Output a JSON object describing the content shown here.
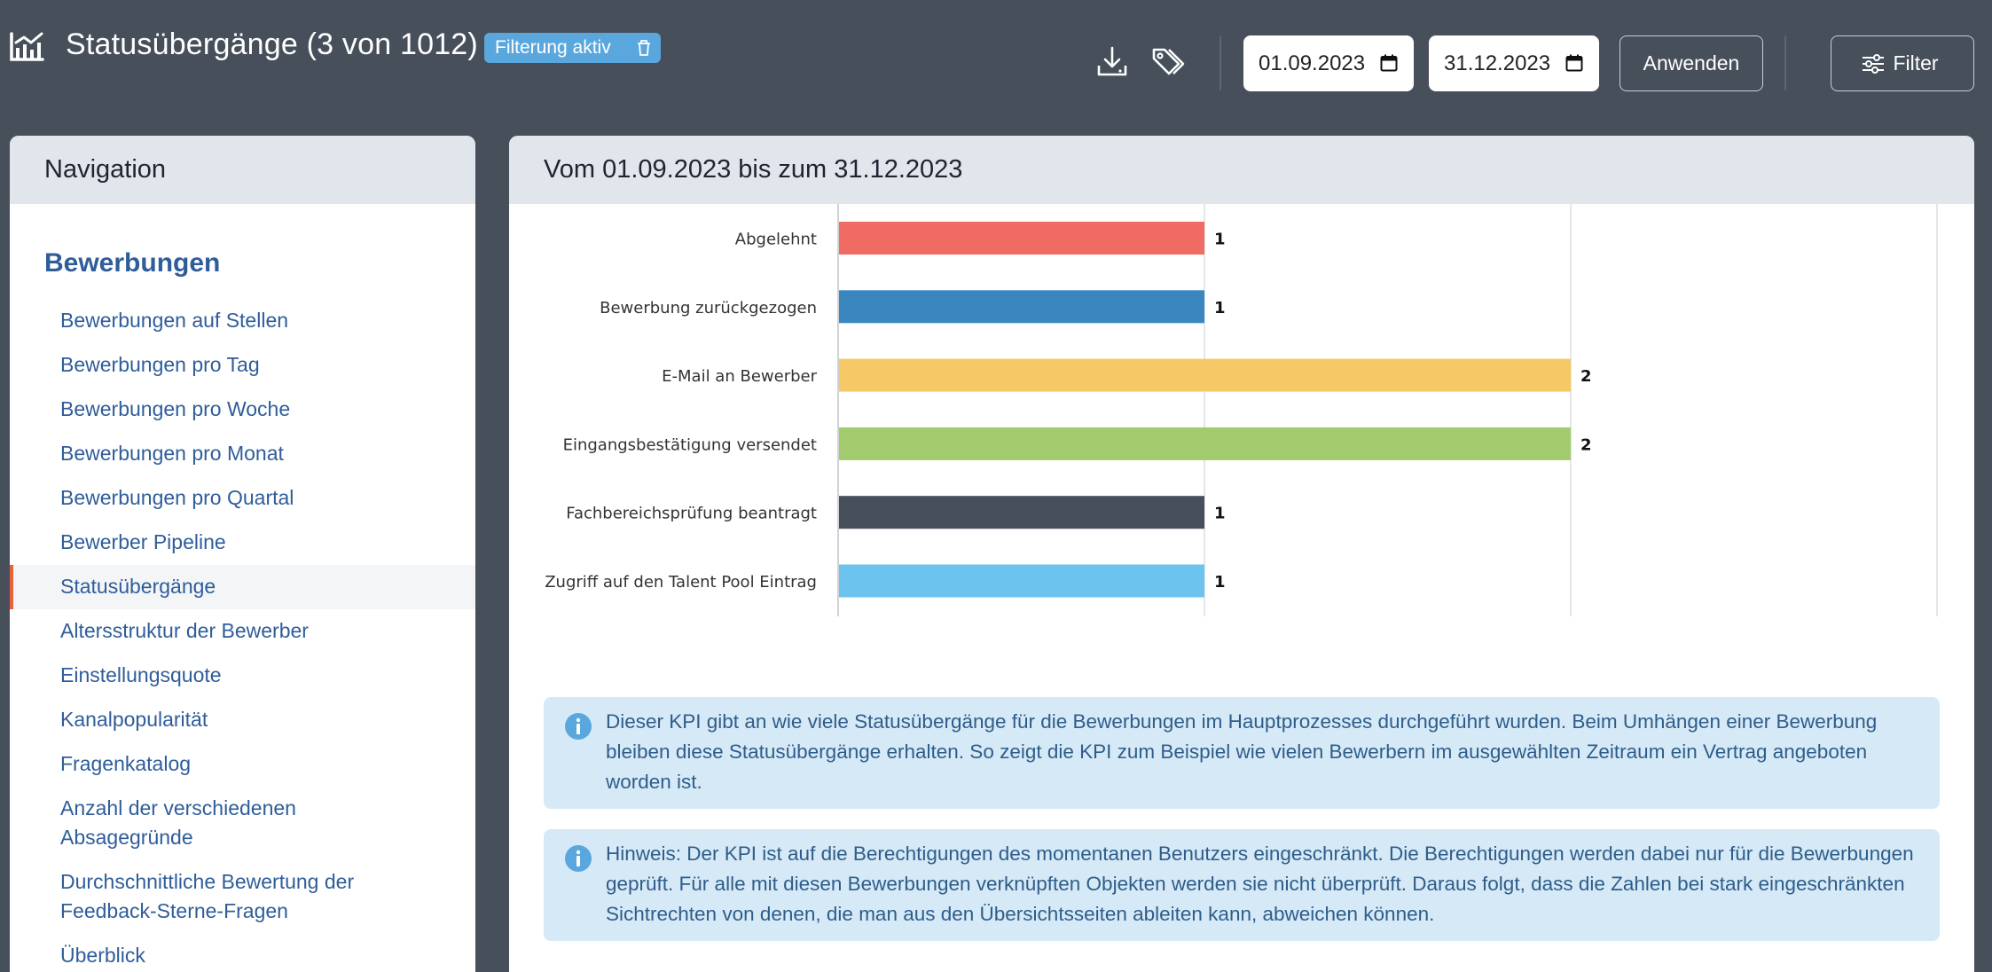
{
  "header": {
    "title": "Statusübergänge (3 von 1012)",
    "filter_badge": "Filterung aktiv",
    "date_from": "01.09.2023",
    "date_to": "31.12.2023",
    "apply_label": "Anwenden",
    "filter_label": "Filter"
  },
  "sidebar": {
    "heading": "Navigation",
    "section": "Bewerbungen",
    "items": [
      {
        "label": "Bewerbungen auf Stellen",
        "active": false
      },
      {
        "label": "Bewerbungen pro Tag",
        "active": false
      },
      {
        "label": "Bewerbungen pro Woche",
        "active": false
      },
      {
        "label": "Bewerbungen pro Monat",
        "active": false
      },
      {
        "label": "Bewerbungen pro Quartal",
        "active": false
      },
      {
        "label": "Bewerber Pipeline",
        "active": false
      },
      {
        "label": "Statusübergänge",
        "active": true
      },
      {
        "label": "Altersstruktur der Bewerber",
        "active": false
      },
      {
        "label": "Einstellungsquote",
        "active": false
      },
      {
        "label": "Kanalpopularität",
        "active": false
      },
      {
        "label": "Fragenkatalog",
        "active": false
      },
      {
        "label": "Anzahl der verschiedenen Absagegründe",
        "active": false
      },
      {
        "label": "Durchschnittliche Bewertung der Feedback-Sterne-Fragen",
        "active": false
      },
      {
        "label": "Überblick",
        "active": false
      }
    ]
  },
  "main": {
    "heading": "Vom 01.09.2023 bis zum 31.12.2023",
    "info_1": "Dieser KPI gibt an wie viele Statusübergänge für die Bewerbungen im Hauptprozesses durchgeführt wurden. Beim Umhängen einer Bewerbung bleiben diese Statusübergänge erhalten. So zeigt die KPI zum Beispiel wie vielen Bewerbern im ausgewählten Zeitraum ein Vertrag angeboten worden ist.",
    "info_2": "Hinweis: Der KPI ist auf die Berechtigungen des momentanen Benutzers eingeschränkt. Die Berechtigungen werden dabei nur für die Bewerbungen geprüft. Für alle mit diesen Bewerbungen verknüpften Objekten werden sie nicht überprüft. Daraus folgt, dass die Zahlen bei stark eingeschränkten Sichtrechten von denen, die man aus den Übersichtsseiten ableiten kann, abweichen können."
  },
  "colors": {
    "header_bg": "#474f5b",
    "accent": "#2f5d9a",
    "badge": "#5aa7dd",
    "active_marker": "#e8603c",
    "info_bg": "#d6e9f7"
  },
  "chart_data": {
    "type": "bar",
    "orientation": "horizontal",
    "categories": [
      "Abgelehnt",
      "Bewerbung zurückgezogen",
      "E-Mail an Bewerber",
      "Eingangsbestätigung versendet",
      "Fachbereichsprüfung beantragt",
      "Zugriff auf den Talent Pool Eintrag"
    ],
    "values": [
      1,
      1,
      2,
      2,
      1,
      1
    ],
    "colors": [
      "#ef6b63",
      "#3a87c0",
      "#f6c966",
      "#a2cb6e",
      "#474f5b",
      "#6cc3ee"
    ],
    "xlim": [
      0,
      3
    ],
    "grid": true,
    "data_labels": true
  }
}
